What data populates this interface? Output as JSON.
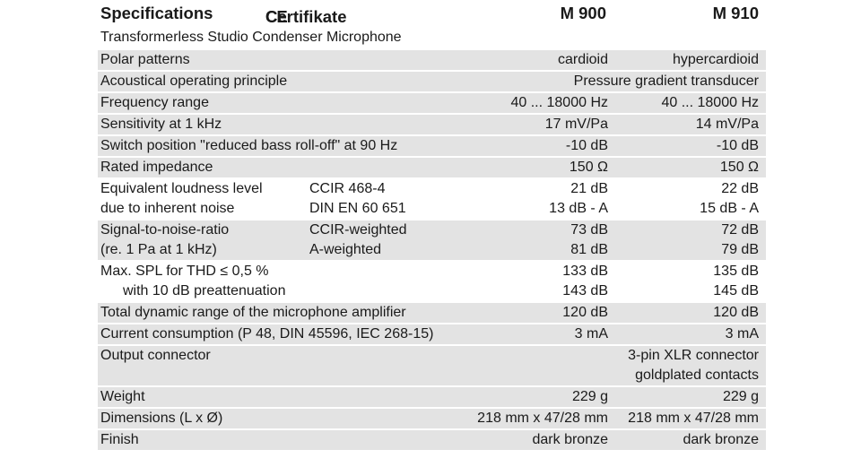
{
  "header": {
    "title": "Specifications",
    "ce_mark": "CE",
    "certificates": "Certifikate",
    "col_a": "M 900",
    "col_b": "M 910"
  },
  "subtitle": "Transformerless Studio Condenser Microphone",
  "rows": [
    {
      "shade": true,
      "lines": [
        {
          "label": "Polar patterns",
          "a": "cardioid",
          "b": "hypercardioid"
        }
      ]
    },
    {
      "shade": true,
      "lines": [
        {
          "label": "Acoustical operating principle",
          "span": "Pressure gradient transducer"
        }
      ]
    },
    {
      "shade": true,
      "lines": [
        {
          "label": "Frequency range",
          "a": "40 ... 18000 Hz",
          "b": "40 ... 18000 Hz"
        }
      ]
    },
    {
      "shade": true,
      "lines": [
        {
          "label": "Sensitivity at 1 kHz",
          "a": "17 mV/Pa",
          "b": "14 mV/Pa"
        }
      ]
    },
    {
      "shade": true,
      "lines": [
        {
          "label": "Switch position \"reduced bass roll-off\" at 90 Hz",
          "a": "-10 dB",
          "b": "-10 dB"
        }
      ]
    },
    {
      "shade": true,
      "lines": [
        {
          "label": "Rated impedance",
          "a": "150 Ω",
          "b": "150 Ω"
        }
      ]
    },
    {
      "shade": false,
      "lines": [
        {
          "label": "Equivalent loudness level",
          "cond": "CCIR  468-4",
          "a": "21 dB",
          "b": "22 dB"
        },
        {
          "label": "due to inherent noise",
          "cond": "DIN EN 60 651",
          "a": "13 dB - A",
          "b": "15 dB - A"
        }
      ]
    },
    {
      "shade": true,
      "lines": [
        {
          "label": "Signal-to-noise-ratio",
          "cond": "CCIR-weighted",
          "a": "73 dB",
          "b": "72 dB"
        },
        {
          "label": "(re. 1 Pa at 1 kHz)",
          "cond": "A-weighted",
          "a": "81 dB",
          "b": "79 dB"
        }
      ]
    },
    {
      "shade": false,
      "lines": [
        {
          "label": "Max. SPL for THD ≤ 0,5 %",
          "a": "133 dB",
          "b": "135 dB"
        },
        {
          "label": "with 10 dB preattenuation",
          "indent": true,
          "a": "143 dB",
          "b": "145 dB"
        }
      ]
    },
    {
      "shade": true,
      "lines": [
        {
          "label": "Total dynamic range of the microphone amplifier",
          "a": "120 dB",
          "b": "120 dB"
        }
      ]
    },
    {
      "shade": true,
      "lines": [
        {
          "label": "Current consumption (P 48, DIN 45596, IEC 268-15)",
          "a": "3 mA",
          "b": "3 mA"
        }
      ]
    },
    {
      "shade": true,
      "lines": [
        {
          "label": "Output connector",
          "span": "3-pin XLR connector"
        },
        {
          "label": "",
          "span": "goldplated contacts"
        }
      ]
    },
    {
      "shade": true,
      "lines": [
        {
          "label": "Weight",
          "a": "229 g",
          "b": "229 g"
        }
      ]
    },
    {
      "shade": true,
      "lines": [
        {
          "label": "Dimensions (L x Ø)",
          "a": "218 mm x 47/28 mm",
          "b": "218 mm x 47/28 mm"
        }
      ]
    },
    {
      "shade": true,
      "lines": [
        {
          "label": "Finish",
          "a": "dark bronze",
          "b": "dark bronze"
        }
      ]
    }
  ]
}
